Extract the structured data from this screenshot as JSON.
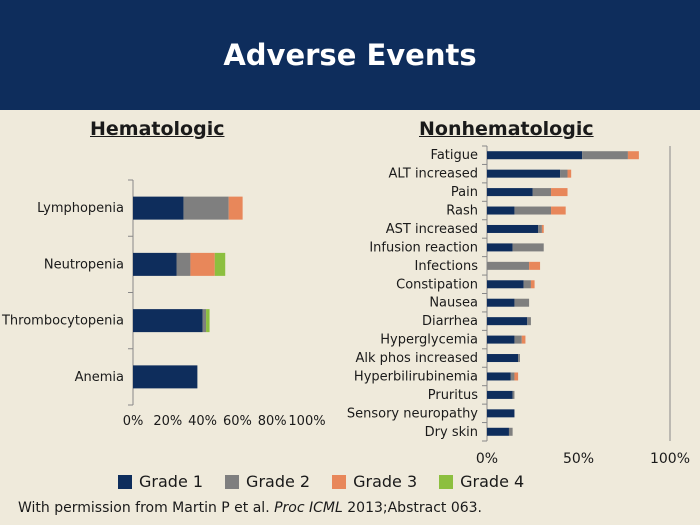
{
  "title": "Adverse Events",
  "colors": {
    "grade1": "#0e2d5c",
    "grade2": "#7f7f7f",
    "grade3": "#e8875a",
    "grade4": "#8cbf3f",
    "header_bg": "#0e2d5c",
    "background": "#efeadb"
  },
  "legend": [
    {
      "label": "Grade 1",
      "color": "#0e2d5c"
    },
    {
      "label": "Grade 2",
      "color": "#7f7f7f"
    },
    {
      "label": "Grade 3",
      "color": "#e8875a"
    },
    {
      "label": "Grade 4",
      "color": "#8cbf3f"
    }
  ],
  "footer": {
    "prefix": "With permission from Martin P et al. ",
    "journal": "Proc ICML",
    "suffix": " 2013;Abstract 063."
  },
  "chart_data": [
    {
      "type": "bar",
      "orientation": "horizontal",
      "stacked": true,
      "title": "Hematologic",
      "categories": [
        "Lymphopenia",
        "Neutropenia",
        "Thrombocytopenia",
        "Anemia"
      ],
      "series": [
        {
          "name": "Grade 1",
          "values": [
            29,
            25,
            40,
            37
          ]
        },
        {
          "name": "Grade 2",
          "values": [
            26,
            8,
            2,
            0
          ]
        },
        {
          "name": "Grade 3",
          "values": [
            8,
            14,
            0,
            0
          ]
        },
        {
          "name": "Grade 4",
          "values": [
            0,
            6,
            2,
            0
          ]
        }
      ],
      "xlim": [
        0,
        100
      ],
      "x_tick_labels": [
        "0%",
        "20%",
        "40%",
        "60%",
        "80%",
        "100%"
      ]
    },
    {
      "type": "bar",
      "orientation": "horizontal",
      "stacked": true,
      "title": "Nonhematologic",
      "categories": [
        "Fatigue",
        "ALT increased",
        "Pain",
        "Rash",
        "AST increased",
        "Infusion reaction",
        "Infections",
        "Constipation",
        "Nausea",
        "Diarrhea",
        "Hyperglycemia",
        "Alk phos increased",
        "Hyperbilirubinemia",
        "Pruritus",
        "Sensory neuropathy",
        "Dry skin"
      ],
      "series": [
        {
          "name": "Grade 1",
          "values": [
            52,
            40,
            25,
            15,
            28,
            14,
            0,
            20,
            15,
            22,
            15,
            17,
            13,
            14,
            15,
            12
          ]
        },
        {
          "name": "Grade 2",
          "values": [
            25,
            4,
            10,
            20,
            2,
            17,
            23,
            4,
            8,
            2,
            4,
            1,
            2,
            1,
            0,
            2
          ]
        },
        {
          "name": "Grade 3",
          "values": [
            6,
            2,
            9,
            8,
            1,
            0,
            6,
            2,
            0,
            0,
            2,
            0,
            2,
            0,
            0,
            0
          ]
        },
        {
          "name": "Grade 4",
          "values": [
            0,
            0,
            0,
            0,
            0,
            0,
            0,
            0,
            0,
            0,
            0,
            0,
            0,
            0,
            0,
            0
          ]
        }
      ],
      "xlim": [
        0,
        100
      ],
      "x_tick_labels": [
        "0%",
        "50%",
        "100%"
      ]
    }
  ]
}
